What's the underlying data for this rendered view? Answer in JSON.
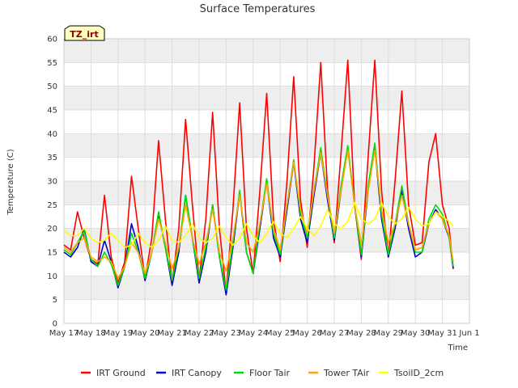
{
  "chart_data": {
    "type": "line",
    "title": "Surface Temperatures",
    "xlabel": "Time",
    "ylabel": "Temperature (C)",
    "annotation": "TZ_irt",
    "ylim": [
      0,
      60
    ],
    "yticks": [
      0,
      5,
      10,
      15,
      20,
      25,
      30,
      35,
      40,
      45,
      50,
      55,
      60
    ],
    "xlim": [
      0,
      15
    ],
    "xtick_labels": [
      "May 17",
      "May 18",
      "May 19",
      "May 20",
      "May 21",
      "May 22",
      "May 23",
      "May 24",
      "May 25",
      "May 26",
      "May 27",
      "May 28",
      "May 29",
      "May 30",
      "May 31",
      "Jun 1"
    ],
    "grid": true,
    "legend_position": "bottom",
    "x_points": [
      0.0,
      0.25,
      0.5,
      0.75,
      1.0,
      1.25,
      1.5,
      1.75,
      2.0,
      2.25,
      2.5,
      2.75,
      3.0,
      3.25,
      3.5,
      3.75,
      4.0,
      4.25,
      4.5,
      4.75,
      5.0,
      5.25,
      5.5,
      5.75,
      6.0,
      6.25,
      6.5,
      6.75,
      7.0,
      7.25,
      7.5,
      7.75,
      8.0,
      8.25,
      8.5,
      8.75,
      9.0,
      9.25,
      9.5,
      9.75,
      10.0,
      10.25,
      10.5,
      10.75,
      11.0,
      11.25,
      11.5,
      11.75,
      12.0,
      12.25,
      12.5,
      12.75,
      13.0,
      13.25,
      13.5,
      13.75,
      14.0,
      14.25,
      14.4
    ],
    "series": [
      {
        "name": "IRT Ground",
        "color": "#ff0000",
        "values": [
          16.5,
          15.5,
          23.5,
          18.0,
          13.5,
          12.5,
          27.0,
          14.0,
          8.5,
          13.0,
          31.0,
          20.0,
          9.5,
          18.0,
          38.5,
          22.0,
          8.5,
          20.0,
          43.0,
          25.0,
          9.0,
          22.0,
          44.5,
          20.0,
          6.5,
          24.0,
          46.5,
          20.0,
          10.5,
          28.0,
          48.5,
          22.0,
          13.0,
          30.0,
          52.0,
          26.0,
          16.0,
          33.0,
          55.0,
          28.0,
          17.0,
          36.0,
          55.5,
          25.0,
          13.5,
          35.0,
          55.5,
          28.0,
          14.0,
          30.0,
          49.0,
          25.0,
          16.5,
          17.0,
          34.0,
          40.0,
          25.0,
          20.0,
          11.5
        ]
      },
      {
        "name": "IRT Canopy",
        "color": "#0000cc",
        "values": [
          15.0,
          14.0,
          16.0,
          20.0,
          13.0,
          12.0,
          17.5,
          13.0,
          7.5,
          12.0,
          21.0,
          16.0,
          9.0,
          15.0,
          23.0,
          16.0,
          8.0,
          15.0,
          27.0,
          18.0,
          8.5,
          15.0,
          25.0,
          14.0,
          6.0,
          16.0,
          27.5,
          15.0,
          10.5,
          20.0,
          30.0,
          18.0,
          14.0,
          24.0,
          34.0,
          22.0,
          17.0,
          27.0,
          36.0,
          26.0,
          17.5,
          28.0,
          37.0,
          25.0,
          14.0,
          28.0,
          37.0,
          22.0,
          14.0,
          20.0,
          28.0,
          20.0,
          14.0,
          15.0,
          21.0,
          24.0,
          22.0,
          18.0,
          11.5
        ]
      },
      {
        "name": "Floor Tair",
        "color": "#00dd00",
        "values": [
          15.5,
          14.5,
          17.0,
          19.5,
          13.5,
          12.0,
          15.0,
          12.5,
          8.0,
          12.0,
          19.0,
          15.0,
          9.5,
          15.0,
          23.5,
          16.0,
          9.0,
          16.0,
          27.0,
          18.0,
          9.5,
          16.0,
          25.0,
          14.0,
          7.0,
          17.0,
          28.0,
          15.0,
          10.5,
          21.0,
          30.5,
          19.0,
          14.5,
          25.0,
          34.5,
          23.0,
          18.0,
          28.0,
          37.0,
          27.0,
          18.0,
          29.0,
          37.5,
          25.0,
          14.5,
          29.0,
          38.0,
          23.0,
          14.5,
          21.0,
          29.0,
          21.0,
          15.0,
          15.0,
          22.0,
          25.0,
          23.0,
          18.0,
          12.0
        ]
      },
      {
        "name": "Tower TAir",
        "color": "#ffa500",
        "values": [
          16.0,
          15.0,
          17.0,
          18.0,
          14.0,
          13.0,
          14.0,
          13.0,
          9.5,
          12.0,
          17.0,
          15.0,
          10.5,
          15.0,
          22.0,
          17.0,
          11.5,
          16.0,
          25.0,
          18.0,
          12.5,
          17.0,
          24.0,
          15.0,
          11.0,
          18.0,
          27.0,
          17.0,
          15.0,
          21.0,
          29.5,
          20.0,
          15.5,
          25.0,
          34.0,
          24.0,
          19.0,
          28.0,
          36.0,
          27.0,
          19.0,
          28.0,
          36.5,
          25.0,
          16.5,
          28.0,
          36.5,
          24.0,
          17.0,
          21.0,
          27.0,
          21.0,
          15.5,
          16.0,
          21.0,
          23.5,
          22.0,
          18.5,
          13.0
        ]
      },
      {
        "name": "TsoilD_2cm",
        "color": "#ffff00",
        "values": [
          19.5,
          18.5,
          18.5,
          20.0,
          18.0,
          17.0,
          17.5,
          19.0,
          17.5,
          16.0,
          16.5,
          19.0,
          17.0,
          16.0,
          17.5,
          20.5,
          17.5,
          17.0,
          18.5,
          21.0,
          18.0,
          17.0,
          18.0,
          20.5,
          18.0,
          16.5,
          18.0,
          21.0,
          18.5,
          17.0,
          19.0,
          21.5,
          19.0,
          18.0,
          20.0,
          22.5,
          20.0,
          18.5,
          20.5,
          24.0,
          21.0,
          20.0,
          21.5,
          25.5,
          22.0,
          21.0,
          22.0,
          25.5,
          22.5,
          21.0,
          22.0,
          24.5,
          22.0,
          20.5,
          21.0,
          23.5,
          22.5,
          21.5,
          20.5
        ]
      }
    ]
  }
}
